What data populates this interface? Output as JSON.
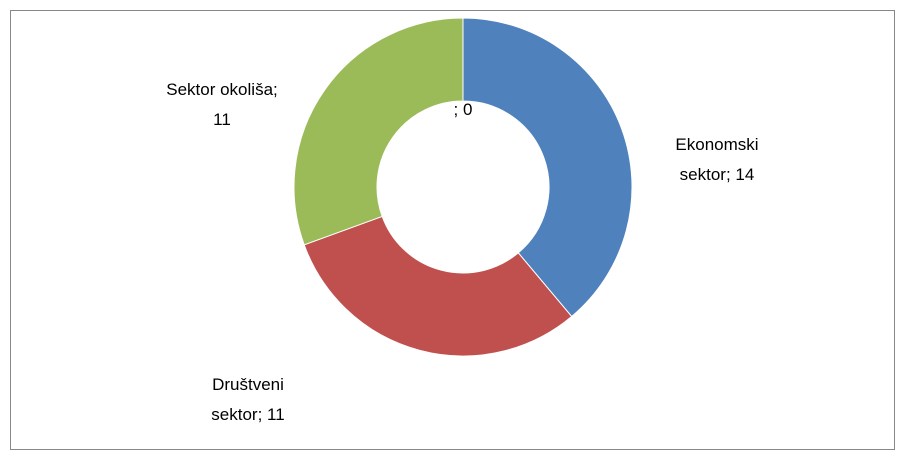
{
  "chart_data": {
    "type": "donut",
    "values": [
      14,
      11,
      11,
      0
    ],
    "value_labels": [
      "Ekonomski sektor; 14",
      "Društveni sektor; 11",
      "Sektor okoliša; 11",
      "; 0"
    ],
    "colors": [
      "#4f81bd",
      "#c0504d",
      "#9bbb59",
      "#8064a2"
    ]
  }
}
